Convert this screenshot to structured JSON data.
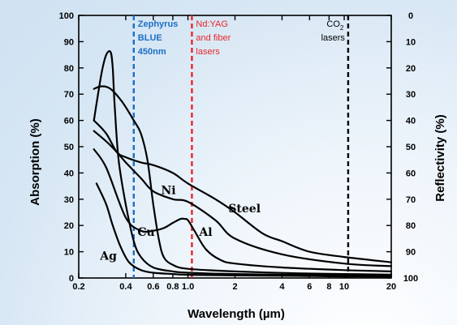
{
  "chart_data": {
    "type": "line",
    "xscale": "log",
    "xlim": [
      0.2,
      20
    ],
    "ylim": [
      0,
      100
    ],
    "y2lim": [
      100,
      0
    ],
    "xlabel": "Wavelength (µm)",
    "ylabel": "Absorption (%)",
    "y2label": "Reflectivity (%)",
    "x_ticks": [
      0.2,
      0.4,
      0.6,
      0.8,
      1.0,
      2,
      4,
      6,
      8,
      10,
      20
    ],
    "x_tick_labels": [
      "0.2",
      "0.4",
      "0.6",
      "0.8",
      "1.0",
      "2",
      "4",
      "6",
      "8",
      "10",
      "20"
    ],
    "y_ticks": [
      0,
      10,
      20,
      30,
      40,
      50,
      60,
      70,
      80,
      90,
      100
    ],
    "y_tick_labels": [
      "0",
      "10",
      "20",
      "30",
      "40",
      "50",
      "60",
      "70",
      "80",
      "90",
      "100"
    ],
    "y2_tick_labels": [
      "100",
      "90",
      "80",
      "70",
      "60",
      "50",
      "40",
      "30",
      "20",
      "10",
      "0"
    ],
    "series": [
      {
        "name": "Ag",
        "x": [
          0.26,
          0.3,
          0.33,
          0.37,
          0.42,
          0.5,
          0.6,
          0.8,
          1.0,
          2,
          5,
          10,
          20
        ],
        "y": [
          36,
          28,
          20,
          12,
          6,
          3,
          2,
          1.5,
          1.2,
          1,
          0.8,
          0.6,
          0.5
        ]
      },
      {
        "name": "Cu",
        "x": [
          0.25,
          0.28,
          0.32,
          0.38,
          0.45,
          0.5,
          0.55,
          0.6,
          0.65,
          0.7,
          0.8,
          1.0,
          2,
          5,
          10,
          20
        ],
        "y": [
          72,
          73,
          72,
          67,
          60,
          55,
          45,
          28,
          15,
          8,
          5,
          3.5,
          2.5,
          1.8,
          1.5,
          1.3
        ]
      },
      {
        "name": "Ni",
        "x": [
          0.25,
          0.3,
          0.35,
          0.4,
          0.5,
          0.6,
          0.8,
          1.0,
          1.5,
          2,
          4,
          10,
          20
        ],
        "y": [
          56,
          52,
          48,
          44,
          38,
          33,
          30,
          29,
          22,
          15,
          9,
          5.5,
          4.5
        ]
      },
      {
        "name": "Steel",
        "x": [
          0.25,
          0.3,
          0.35,
          0.4,
          0.5,
          0.6,
          0.8,
          1.0,
          1.5,
          2,
          3,
          4,
          6,
          10,
          20
        ],
        "y": [
          60,
          55,
          48,
          46,
          44,
          43,
          40,
          36,
          30,
          25,
          17,
          14,
          10,
          8,
          6
        ]
      },
      {
        "name": "Al",
        "x": [
          0.25,
          0.3,
          0.4,
          0.5,
          0.6,
          0.7,
          0.8,
          0.9,
          0.95,
          1.0,
          1.1,
          1.3,
          1.6,
          2,
          4,
          10,
          20
        ],
        "y": [
          49,
          42,
          23,
          18,
          18,
          19,
          21,
          22.5,
          22.5,
          22,
          18,
          11,
          7,
          5.5,
          4,
          3,
          2.5
        ]
      },
      {
        "name": "",
        "x": [
          0.25,
          0.28,
          0.3,
          0.32,
          0.33,
          0.34,
          0.36,
          0.4,
          0.45,
          0.5,
          0.6,
          0.8,
          1.0,
          2,
          5,
          10,
          20
        ],
        "y": [
          60,
          78,
          85,
          86,
          80,
          65,
          45,
          28,
          14,
          8,
          4,
          2.5,
          2,
          1.5,
          1.2,
          1,
          1
        ]
      }
    ],
    "curve_labels": [
      {
        "text": "Ag",
        "x": 0.31,
        "y": 7
      },
      {
        "text": "Cu",
        "x": 0.54,
        "y": 16
      },
      {
        "text": "Ni",
        "x": 0.75,
        "y": 32
      },
      {
        "text": "Al",
        "x": 1.3,
        "y": 16
      },
      {
        "text": "Steel",
        "x": 2.3,
        "y": 25
      }
    ],
    "reference_lines": [
      {
        "x": 0.45,
        "color": "#1c6fc4",
        "lines": [
          "Zephyrus",
          "BLUE",
          "450nm"
        ],
        "bold": true
      },
      {
        "x": 1.06,
        "color": "#e8262a",
        "lines": [
          "Nd:YAG",
          "and fiber",
          "lasers"
        ],
        "bold": false
      },
      {
        "x": 10.6,
        "color": "#000000",
        "lines": [
          "CO",
          "lasers"
        ],
        "subscript": "2",
        "bold": false
      }
    ],
    "grid": false
  }
}
